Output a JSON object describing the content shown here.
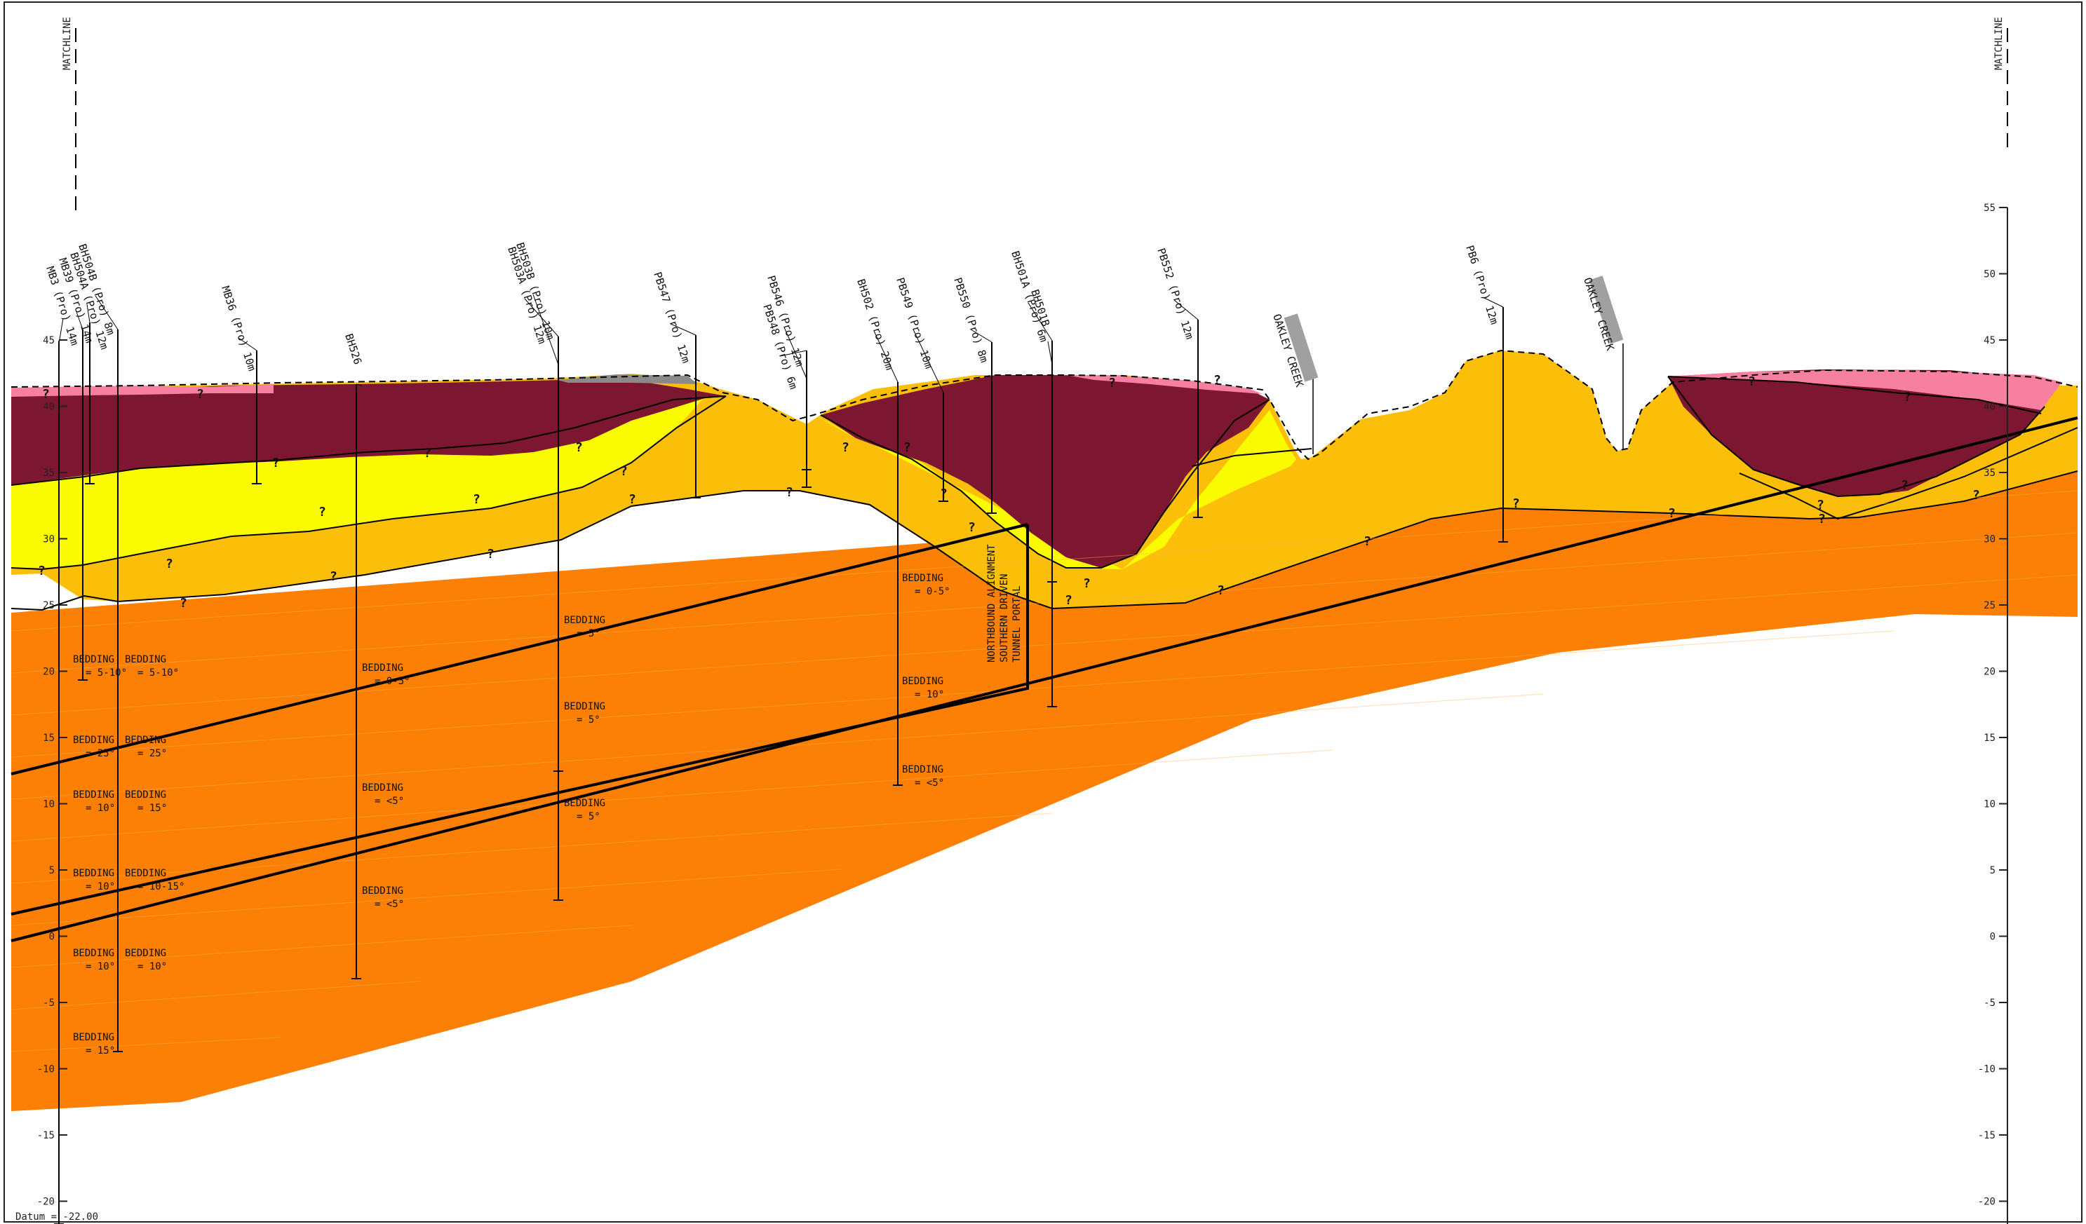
{
  "matchline": "MATCHLINE",
  "datum": "Datum = -22.00",
  "axis_ticks": [
    55,
    50,
    45,
    40,
    35,
    30,
    25,
    20,
    15,
    10,
    5,
    0,
    -5,
    -10,
    -15,
    -20
  ],
  "left_axis_ticks": [
    45,
    40,
    35,
    30,
    25,
    20,
    15,
    10,
    5,
    0,
    -5,
    -10,
    -15,
    -20
  ],
  "colors": {
    "fill_pink": "#f77fa0",
    "maroon": "#7d1630",
    "yellow": "#fbfb00",
    "amber": "#fbbf0a",
    "orange": "#fb8005",
    "grey": "#8a8a8a",
    "line": "#000000"
  },
  "boreholes": [
    {
      "label": "MB3 (Pro) 14m"
    },
    {
      "label": "MB39 (Pro) 14m"
    },
    {
      "label": "BH504A (Pro) 12m"
    },
    {
      "label": "BH504B (Pro) 8m"
    },
    {
      "label": "MB36 (Pro) 10m"
    },
    {
      "label": "BH526"
    },
    {
      "label": "BH503A (Pro) 12m"
    },
    {
      "label": "BH503B (Pro) 10m"
    },
    {
      "label": "PB547 (Pro) 12m"
    },
    {
      "label": "PB548 (Pro) 6m"
    },
    {
      "label": "PB546 (Pro) 12m"
    },
    {
      "label": "BH502 (Pro) 20m"
    },
    {
      "label": "PB549 (Pro) 10m"
    },
    {
      "label": "PB550 (Pro) 8m"
    },
    {
      "label": "BH501A (Pro) 6m"
    },
    {
      "label": "BH501B"
    },
    {
      "label": "PB552 (Pro) 12m"
    },
    {
      "label": "PB6 (Pro) 12m"
    }
  ],
  "creeks": [
    {
      "label": "OAKLEY CREEK"
    },
    {
      "label": "OAKLEY CREEK"
    }
  ],
  "portal_label": [
    "NORTHBOUND ALIGNMENT",
    "SOUTHERN DRIVEN",
    "TUNNEL PORTAL"
  ],
  "bedding_title": "BEDDING",
  "bedding": [
    {
      "value": "= 5-10°"
    },
    {
      "value": "= 5-10°"
    },
    {
      "value": "= 25°"
    },
    {
      "value": "= 25°"
    },
    {
      "value": "= 10°"
    },
    {
      "value": "= 15°"
    },
    {
      "value": "= 10°"
    },
    {
      "value": "= 10-15°"
    },
    {
      "value": "= 10°"
    },
    {
      "value": "= 10°"
    },
    {
      "value": "= 15°"
    },
    {
      "value": "= 0-5°"
    },
    {
      "value": "= <5°"
    },
    {
      "value": "= <5°"
    },
    {
      "value": "= 5°"
    },
    {
      "value": "= 5°"
    },
    {
      "value": "= 5°"
    },
    {
      "value": "= 0-5°"
    },
    {
      "value": "= 10°"
    },
    {
      "value": "= <5°"
    }
  ],
  "question_mark": "?"
}
